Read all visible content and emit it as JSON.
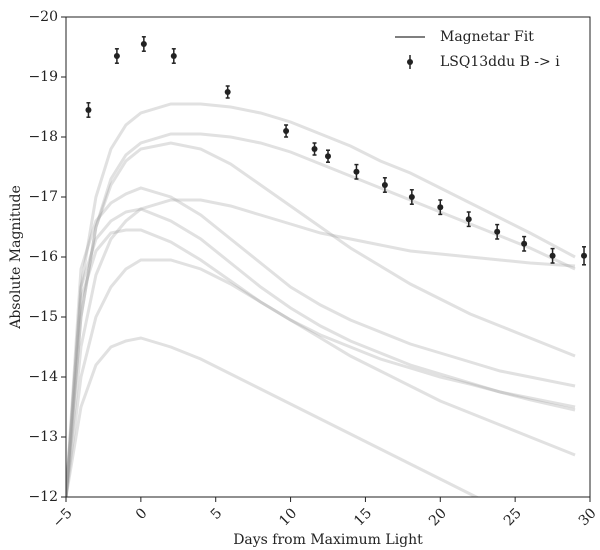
{
  "chart_data": {
    "type": "lightcurve",
    "xlabel": "Days from Maximum Light",
    "ylabel": "Absolute Magnitude",
    "xlim": [
      -5,
      30
    ],
    "ylim": [
      -20,
      -12
    ],
    "y_inverted": true,
    "xticks": [
      {
        "value": -5,
        "label": "−5"
      },
      0,
      5,
      10,
      15,
      20,
      25,
      30
    ],
    "yticks": [
      {
        "value": -20,
        "label": "−20"
      },
      {
        "value": -19,
        "label": "−19"
      },
      {
        "value": -18,
        "label": "−18"
      },
      {
        "value": -17,
        "label": "−17"
      },
      {
        "value": -16,
        "label": "−16"
      },
      {
        "value": -15,
        "label": "−15"
      },
      {
        "value": -14,
        "label": "−14"
      },
      {
        "value": -13,
        "label": "−13"
      },
      {
        "value": -12,
        "label": "−12"
      }
    ],
    "legend": "upper right",
    "fits": {
      "name": "Magnetar Fit",
      "color": "#9a9a9a",
      "x": [
        -5,
        -4,
        -3,
        -2,
        -1,
        0,
        2,
        4,
        6,
        8,
        10,
        12,
        14,
        16,
        18,
        20,
        22,
        24,
        26,
        29
      ],
      "curves": [
        [
          -12,
          -15.5,
          -17,
          -17.8,
          -18.2,
          -18.4,
          -18.55,
          -18.55,
          -18.5,
          -18.4,
          -18.25,
          -18.05,
          -17.85,
          -17.6,
          -17.4,
          -17.15,
          -16.9,
          -16.65,
          -16.4,
          -16.0
        ],
        [
          -12,
          -15,
          -16.5,
          -17.3,
          -17.7,
          -17.9,
          -18.05,
          -18.05,
          -18.0,
          -17.9,
          -17.75,
          -17.55,
          -17.35,
          -17.15,
          -16.95,
          -16.75,
          -16.55,
          -16.35,
          -16.15,
          -15.8
        ],
        [
          -12,
          -15.8,
          -16.6,
          -16.9,
          -17.05,
          -17.15,
          -17.0,
          -16.7,
          -16.3,
          -15.9,
          -15.5,
          -15.2,
          -14.95,
          -14.75,
          -14.55,
          -14.4,
          -14.25,
          -14.1,
          -14.0,
          -13.85
        ],
        [
          -12,
          -15.5,
          -16.3,
          -16.6,
          -16.75,
          -16.8,
          -16.6,
          -16.3,
          -15.9,
          -15.5,
          -15.15,
          -14.85,
          -14.6,
          -14.4,
          -14.2,
          -14.05,
          -13.9,
          -13.75,
          -13.62,
          -13.45
        ],
        [
          -12,
          -14.5,
          -15.7,
          -16.3,
          -16.6,
          -16.8,
          -16.95,
          -16.95,
          -16.85,
          -16.7,
          -16.55,
          -16.4,
          -16.3,
          -16.2,
          -16.1,
          -16.05,
          -16.0,
          -15.95,
          -15.9,
          -15.85
        ],
        [
          -12,
          -14.0,
          -15.0,
          -15.5,
          -15.8,
          -15.95,
          -15.95,
          -15.8,
          -15.55,
          -15.25,
          -14.95,
          -14.65,
          -14.35,
          -14.1,
          -13.85,
          -13.6,
          -13.4,
          -13.2,
          -13.0,
          -12.7
        ],
        [
          -12,
          -13.5,
          -14.2,
          -14.5,
          -14.6,
          -14.65,
          -14.5,
          -14.3,
          -14.05,
          -13.8,
          -13.55,
          -13.3,
          -13.05,
          -12.8,
          -12.55,
          -12.3,
          -12.05,
          -11.8,
          -11.6,
          -11.3
        ],
        [
          -12,
          -15.0,
          -16.5,
          -17.2,
          -17.6,
          -17.8,
          -17.9,
          -17.8,
          -17.55,
          -17.2,
          -16.85,
          -16.5,
          -16.15,
          -15.85,
          -15.55,
          -15.3,
          -15.05,
          -14.85,
          -14.65,
          -14.35
        ],
        [
          -12,
          -15.3,
          -16.1,
          -16.4,
          -16.45,
          -16.45,
          -16.25,
          -15.95,
          -15.6,
          -15.25,
          -14.95,
          -14.7,
          -14.5,
          -14.3,
          -14.15,
          -14.0,
          -13.88,
          -13.75,
          -13.65,
          -13.5
        ]
      ]
    },
    "observations": {
      "name": "LSQ13ddu B -> i",
      "color": "#222222",
      "x": [
        -3.5,
        -1.6,
        0.2,
        2.2,
        5.8,
        9.7,
        11.6,
        12.5,
        14.4,
        16.3,
        18.1,
        20.0,
        21.9,
        23.8,
        25.6,
        27.5,
        29.6
      ],
      "values": [
        -18.45,
        -19.35,
        -19.55,
        -19.35,
        -18.75,
        -18.1,
        -17.8,
        -17.68,
        -17.42,
        -17.2,
        -17.0,
        -16.83,
        -16.63,
        -16.42,
        -16.22,
        -16.02,
        -16.02
      ],
      "errors": [
        0.12,
        0.12,
        0.12,
        0.12,
        0.1,
        0.1,
        0.1,
        0.1,
        0.12,
        0.12,
        0.12,
        0.12,
        0.12,
        0.12,
        0.12,
        0.12,
        0.15
      ]
    }
  }
}
